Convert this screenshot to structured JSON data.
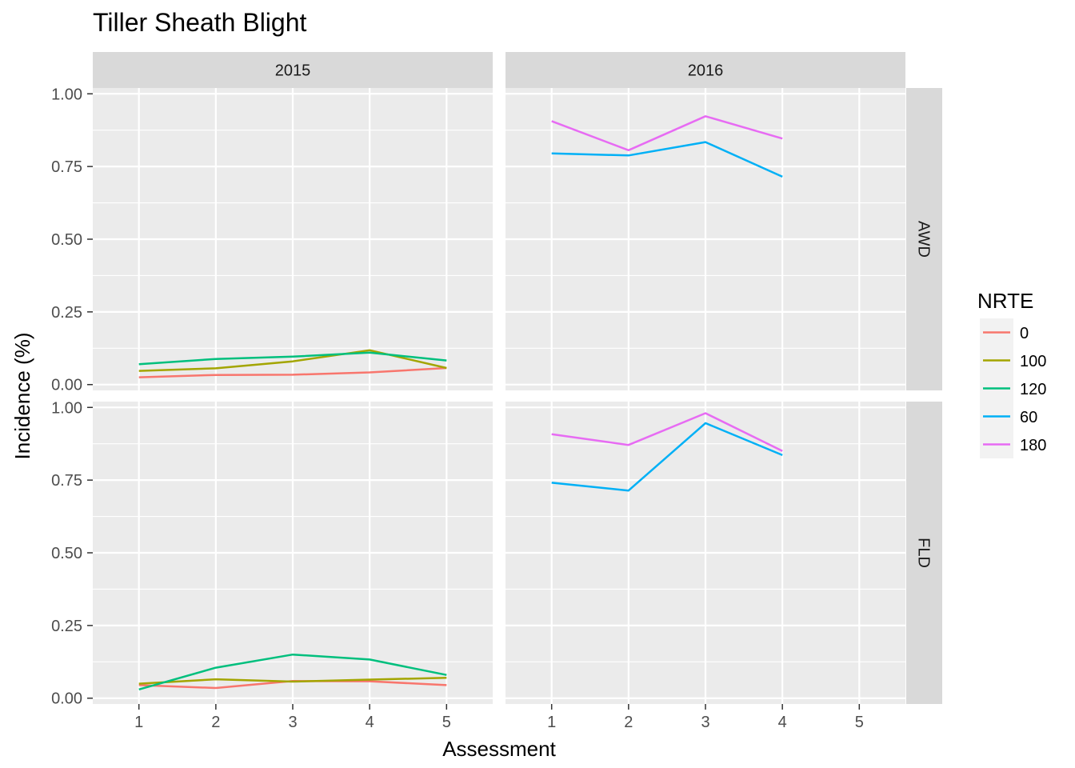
{
  "chart_data": {
    "type": "line",
    "title": "Tiller Sheath Blight",
    "xlabel": "Assessment",
    "ylabel": "Incidence (%)",
    "x": [
      1,
      2,
      3,
      4,
      5
    ],
    "xlim": [
      0.4,
      5.6
    ],
    "ylim": [
      -0.02,
      1.02
    ],
    "yticks": [
      "0.00",
      "0.25",
      "0.50",
      "0.75",
      "1.00"
    ],
    "ytick_values": [
      0,
      0.25,
      0.5,
      0.75,
      1.0
    ],
    "grid": true,
    "legend": {
      "title": "NRTE",
      "position": "right",
      "entries": [
        {
          "label": "0",
          "color": "#F8766D"
        },
        {
          "label": "100",
          "color": "#A3A500"
        },
        {
          "label": "120",
          "color": "#00BF7D"
        },
        {
          "label": "60",
          "color": "#00B0F6"
        },
        {
          "label": "180",
          "color": "#E76BF3"
        }
      ]
    },
    "columns": [
      "2015",
      "2016"
    ],
    "rows": [
      "AWD",
      "FLD"
    ],
    "panels": [
      {
        "column": "2015",
        "row": "AWD",
        "series": [
          {
            "name": "0",
            "x": [
              1,
              2,
              3,
              4,
              5
            ],
            "values": [
              0.025,
              0.033,
              0.034,
              0.042,
              0.057
            ]
          },
          {
            "name": "100",
            "x": [
              1,
              2,
              3,
              4,
              5
            ],
            "values": [
              0.047,
              0.056,
              0.08,
              0.118,
              0.057
            ]
          },
          {
            "name": "120",
            "x": [
              1,
              2,
              3,
              4,
              5
            ],
            "values": [
              0.07,
              0.088,
              0.096,
              0.11,
              0.083
            ]
          }
        ]
      },
      {
        "column": "2016",
        "row": "AWD",
        "series": [
          {
            "name": "60",
            "x": [
              1,
              2,
              3,
              4
            ],
            "values": [
              0.795,
              0.788,
              0.834,
              0.715
            ]
          },
          {
            "name": "180",
            "x": [
              1,
              2,
              3,
              4
            ],
            "values": [
              0.906,
              0.806,
              0.923,
              0.846
            ]
          }
        ]
      },
      {
        "column": "2015",
        "row": "FLD",
        "series": [
          {
            "name": "0",
            "x": [
              1,
              2,
              3,
              4,
              5
            ],
            "values": [
              0.045,
              0.035,
              0.059,
              0.058,
              0.045
            ]
          },
          {
            "name": "100",
            "x": [
              1,
              2,
              3,
              4,
              5
            ],
            "values": [
              0.05,
              0.065,
              0.057,
              0.064,
              0.07
            ]
          },
          {
            "name": "120",
            "x": [
              1,
              2,
              3,
              4,
              5
            ],
            "values": [
              0.03,
              0.105,
              0.15,
              0.133,
              0.08
            ]
          }
        ]
      },
      {
        "column": "2016",
        "row": "FLD",
        "series": [
          {
            "name": "60",
            "x": [
              1,
              2,
              3,
              4
            ],
            "values": [
              0.741,
              0.714,
              0.946,
              0.836
            ]
          },
          {
            "name": "180",
            "x": [
              1,
              2,
              3,
              4
            ],
            "values": [
              0.908,
              0.871,
              0.98,
              0.85
            ]
          }
        ]
      }
    ]
  }
}
